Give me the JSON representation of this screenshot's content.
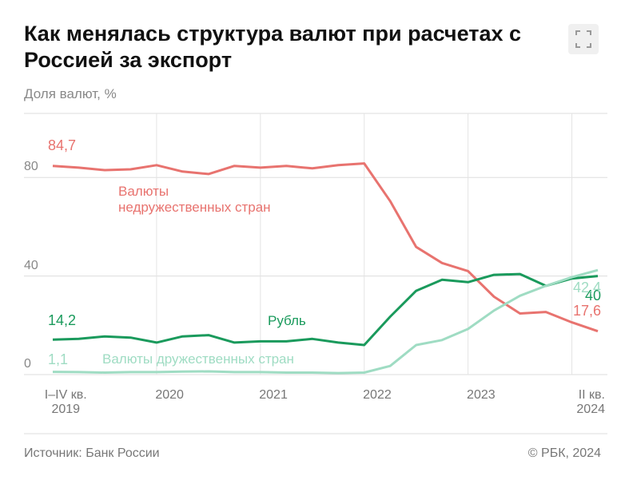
{
  "title": "Как менялась структура валют при расчетах с Россией за экспорт",
  "footer": {
    "source": "Источник: Банк России",
    "copyright": "© РБК, 2024"
  },
  "chart_data": {
    "type": "line",
    "subtitle": "Доля валют, %",
    "categories": [
      null,
      "I–IV кв.\n2019",
      null,
      null,
      null,
      "2020",
      null,
      null,
      null,
      "2021",
      null,
      null,
      null,
      "2022",
      null,
      null,
      null,
      "2023",
      null,
      null,
      null,
      "II кв.\n2024"
    ],
    "ylim": [
      0,
      106
    ],
    "yticks": [
      0,
      40,
      80
    ],
    "grid": true,
    "series": [
      {
        "name": "Валюты\nнедружественных стран",
        "color": "#e8736f",
        "values": [
          84.7,
          84,
          83,
          83.3,
          85,
          82.4,
          81.4,
          84.7,
          84,
          84.7,
          83.7,
          85,
          85.7,
          70.4,
          51.8,
          45.3,
          42,
          31.6,
          24.8,
          25.4,
          21.2,
          17.6
        ],
        "value_labels": [
          "84,7",
          null,
          null,
          null,
          null,
          null,
          null,
          null,
          null,
          null,
          null,
          null,
          null,
          null,
          null,
          null,
          null,
          null,
          null,
          null,
          null,
          "17,6"
        ]
      },
      {
        "name": "Рубль",
        "color": "#1a9a5c",
        "values": [
          14.2,
          14.5,
          15.5,
          15,
          13,
          15.5,
          16,
          13,
          13.5,
          13.5,
          14.5,
          13,
          12,
          23.5,
          34,
          38.5,
          37.5,
          40.5,
          40.8,
          36,
          39,
          40
        ],
        "value_labels": [
          "14,2",
          null,
          null,
          null,
          null,
          null,
          null,
          null,
          null,
          null,
          null,
          null,
          null,
          null,
          null,
          null,
          null,
          null,
          null,
          null,
          null,
          "40"
        ]
      },
      {
        "name": "Валюты дружественных стран",
        "color": "#9fdcc3",
        "values": [
          1.1,
          1.0,
          0.8,
          1.0,
          1.0,
          1.2,
          1.3,
          1.0,
          1.0,
          0.8,
          0.8,
          0.6,
          0.8,
          3.5,
          12,
          14,
          18.5,
          26,
          32,
          36,
          39.5,
          42.4
        ],
        "value_labels": [
          "1,1",
          null,
          null,
          null,
          null,
          null,
          null,
          null,
          null,
          null,
          null,
          null,
          null,
          null,
          null,
          null,
          null,
          null,
          null,
          null,
          null,
          "42,4"
        ]
      }
    ]
  }
}
